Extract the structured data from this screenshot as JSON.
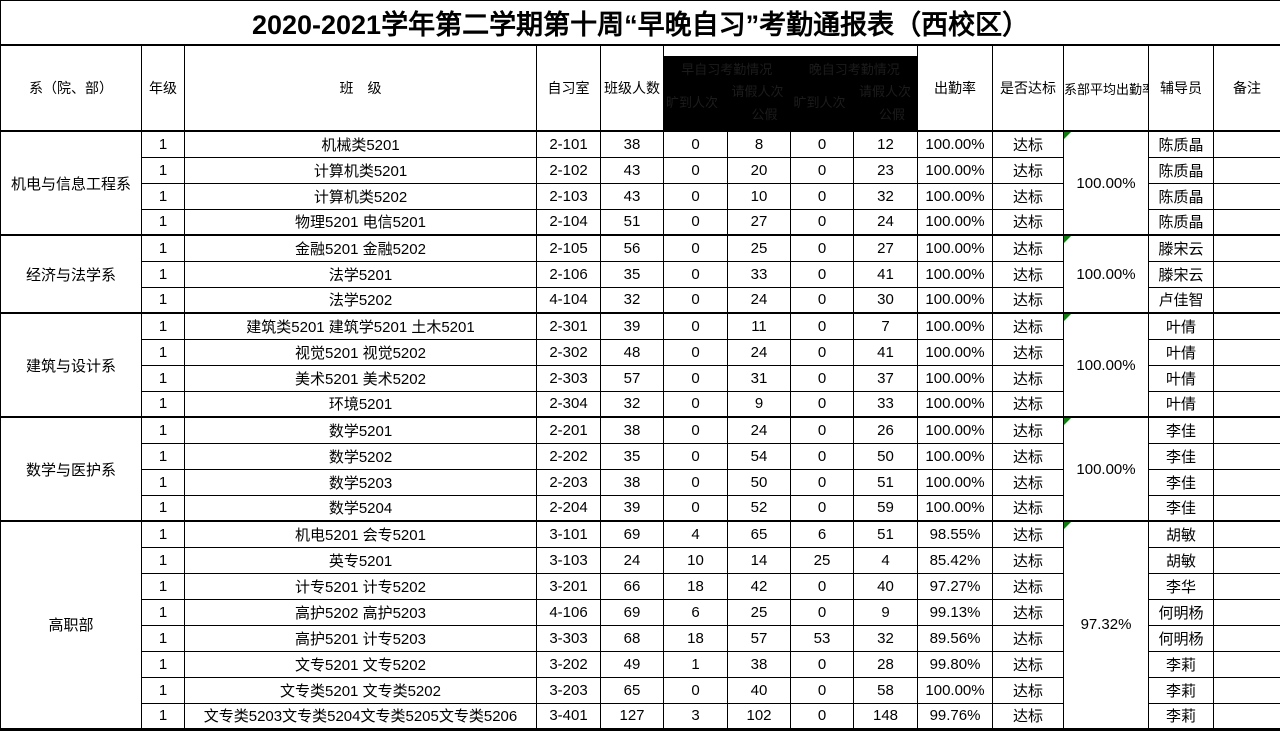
{
  "title": "2020-2021学年第二学期第十周“早晚自习”考勤通报表（西校区）",
  "headers": {
    "department": "系（院、部）",
    "grade": "年级",
    "class_name": "班　级",
    "room": "自习室",
    "size": "班级人数",
    "rate": "出勤率",
    "status": "是否达标",
    "avg": "系部平均出勤率",
    "counselor": "辅导员",
    "note": "备注"
  },
  "redacted_header": {
    "morning_title": "早自习考勤情况",
    "evening_title": "晚自习考勤情况",
    "absent_label": "旷到人次",
    "leave_label": "请假人次",
    "public_leave_label": "公假"
  },
  "colors": {
    "border": "#000000",
    "redaction_block": "#000000",
    "redaction_faint_text": "#1c1c1c",
    "corner_flag_green": "#107c10"
  },
  "groups": [
    {
      "department": "机电与信息工程系",
      "avg_rate": "100.00%",
      "rows": [
        {
          "grade": "1",
          "class_name": "机械类5201",
          "room": "2-101",
          "size": "38",
          "morning_absent": "0",
          "morning_leave": "8",
          "evening_absent": "0",
          "evening_leave": "12",
          "rate": "100.00%",
          "status": "达标",
          "counselor": "陈质晶",
          "note": ""
        },
        {
          "grade": "1",
          "class_name": "计算机类5201",
          "room": "2-102",
          "size": "43",
          "morning_absent": "0",
          "morning_leave": "20",
          "evening_absent": "0",
          "evening_leave": "23",
          "rate": "100.00%",
          "status": "达标",
          "counselor": "陈质晶",
          "note": ""
        },
        {
          "grade": "1",
          "class_name": "计算机类5202",
          "room": "2-103",
          "size": "43",
          "morning_absent": "0",
          "morning_leave": "10",
          "evening_absent": "0",
          "evening_leave": "32",
          "rate": "100.00%",
          "status": "达标",
          "counselor": "陈质晶",
          "note": ""
        },
        {
          "grade": "1",
          "class_name": "物理5201 电信5201",
          "room": "2-104",
          "size": "51",
          "morning_absent": "0",
          "morning_leave": "27",
          "evening_absent": "0",
          "evening_leave": "24",
          "rate": "100.00%",
          "status": "达标",
          "counselor": "陈质晶",
          "note": ""
        }
      ]
    },
    {
      "department": "经济与法学系",
      "avg_rate": "100.00%",
      "rows": [
        {
          "grade": "1",
          "class_name": "金融5201 金融5202",
          "room": "2-105",
          "size": "56",
          "morning_absent": "0",
          "morning_leave": "25",
          "evening_absent": "0",
          "evening_leave": "27",
          "rate": "100.00%",
          "status": "达标",
          "counselor": "滕宋云",
          "note": ""
        },
        {
          "grade": "1",
          "class_name": "法学5201",
          "room": "2-106",
          "size": "35",
          "morning_absent": "0",
          "morning_leave": "33",
          "evening_absent": "0",
          "evening_leave": "41",
          "rate": "100.00%",
          "status": "达标",
          "counselor": "滕宋云",
          "note": ""
        },
        {
          "grade": "1",
          "class_name": "法学5202",
          "room": "4-104",
          "size": "32",
          "morning_absent": "0",
          "morning_leave": "24",
          "evening_absent": "0",
          "evening_leave": "30",
          "rate": "100.00%",
          "status": "达标",
          "counselor": "卢佳智",
          "note": ""
        }
      ]
    },
    {
      "department": "建筑与设计系",
      "avg_rate": "100.00%",
      "rows": [
        {
          "grade": "1",
          "class_name": "建筑类5201 建筑学5201  土木5201",
          "room": "2-301",
          "size": "39",
          "morning_absent": "0",
          "morning_leave": "11",
          "evening_absent": "0",
          "evening_leave": "7",
          "rate": "100.00%",
          "status": "达标",
          "counselor": "叶倩",
          "note": ""
        },
        {
          "grade": "1",
          "class_name": "视觉5201 视觉5202",
          "room": "2-302",
          "size": "48",
          "morning_absent": "0",
          "morning_leave": "24",
          "evening_absent": "0",
          "evening_leave": "41",
          "rate": "100.00%",
          "status": "达标",
          "counselor": "叶倩",
          "note": ""
        },
        {
          "grade": "1",
          "class_name": "美术5201 美术5202",
          "room": "2-303",
          "size": "57",
          "morning_absent": "0",
          "morning_leave": "31",
          "evening_absent": "0",
          "evening_leave": "37",
          "rate": "100.00%",
          "status": "达标",
          "counselor": "叶倩",
          "note": ""
        },
        {
          "grade": "1",
          "class_name": "环境5201",
          "room": "2-304",
          "size": "32",
          "morning_absent": "0",
          "morning_leave": "9",
          "evening_absent": "0",
          "evening_leave": "33",
          "rate": "100.00%",
          "status": "达标",
          "counselor": "叶倩",
          "note": ""
        }
      ]
    },
    {
      "department": "数学与医护系",
      "avg_rate": "100.00%",
      "rows": [
        {
          "grade": "1",
          "class_name": "数学5201",
          "room": "2-201",
          "size": "38",
          "morning_absent": "0",
          "morning_leave": "24",
          "evening_absent": "0",
          "evening_leave": "26",
          "rate": "100.00%",
          "status": "达标",
          "counselor": "李佳",
          "note": ""
        },
        {
          "grade": "1",
          "class_name": "数学5202",
          "room": "2-202",
          "size": "35",
          "morning_absent": "0",
          "morning_leave": "54",
          "evening_absent": "0",
          "evening_leave": "50",
          "rate": "100.00%",
          "status": "达标",
          "counselor": "李佳",
          "note": ""
        },
        {
          "grade": "1",
          "class_name": "数学5203",
          "room": "2-203",
          "size": "38",
          "morning_absent": "0",
          "morning_leave": "50",
          "evening_absent": "0",
          "evening_leave": "51",
          "rate": "100.00%",
          "status": "达标",
          "counselor": "李佳",
          "note": ""
        },
        {
          "grade": "1",
          "class_name": "数学5204",
          "room": "2-204",
          "size": "39",
          "morning_absent": "0",
          "morning_leave": "52",
          "evening_absent": "0",
          "evening_leave": "59",
          "rate": "100.00%",
          "status": "达标",
          "counselor": "李佳",
          "note": ""
        }
      ]
    },
    {
      "department": "高职部",
      "avg_rate": "97.32%",
      "rows": [
        {
          "grade": "1",
          "class_name": "机电5201 会专5201",
          "room": "3-101",
          "size": "69",
          "morning_absent": "4",
          "morning_leave": "65",
          "evening_absent": "6",
          "evening_leave": "51",
          "rate": "98.55%",
          "status": "达标",
          "counselor": "胡敏",
          "note": ""
        },
        {
          "grade": "1",
          "class_name": "英专5201",
          "room": "3-103",
          "size": "24",
          "morning_absent": "10",
          "morning_leave": "14",
          "evening_absent": "25",
          "evening_leave": "4",
          "rate": "85.42%",
          "status": "达标",
          "counselor": "胡敏",
          "note": ""
        },
        {
          "grade": "1",
          "class_name": "计专5201 计专5202",
          "room": "3-201",
          "size": "66",
          "morning_absent": "18",
          "morning_leave": "42",
          "evening_absent": "0",
          "evening_leave": "40",
          "rate": "97.27%",
          "status": "达标",
          "counselor": "李华",
          "note": ""
        },
        {
          "grade": "1",
          "class_name": "高护5202 高护5203",
          "room": "4-106",
          "size": "69",
          "morning_absent": "6",
          "morning_leave": "25",
          "evening_absent": "0",
          "evening_leave": "9",
          "rate": "99.13%",
          "status": "达标",
          "counselor": "何明杨",
          "note": ""
        },
        {
          "grade": "1",
          "class_name": "高护5201 计专5203",
          "room": "3-303",
          "size": "68",
          "morning_absent": "18",
          "morning_leave": "57",
          "evening_absent": "53",
          "evening_leave": "32",
          "rate": "89.56%",
          "status": "达标",
          "counselor": "何明杨",
          "note": ""
        },
        {
          "grade": "1",
          "class_name": "文专5201  文专5202",
          "room": "3-202",
          "size": "49",
          "morning_absent": "1",
          "morning_leave": "38",
          "evening_absent": "0",
          "evening_leave": "28",
          "rate": "99.80%",
          "status": "达标",
          "counselor": "李莉",
          "note": ""
        },
        {
          "grade": "1",
          "class_name": "文专类5201 文专类5202",
          "room": "3-203",
          "size": "65",
          "morning_absent": "0",
          "morning_leave": "40",
          "evening_absent": "0",
          "evening_leave": "58",
          "rate": "100.00%",
          "status": "达标",
          "counselor": "李莉",
          "note": ""
        },
        {
          "grade": "1",
          "class_name": "文专类5203文专类5204文专类5205文专类5206",
          "room": "3-401",
          "size": "127",
          "morning_absent": "3",
          "morning_leave": "102",
          "evening_absent": "0",
          "evening_leave": "148",
          "rate": "99.76%",
          "status": "达标",
          "counselor": "李莉",
          "note": ""
        }
      ]
    }
  ]
}
